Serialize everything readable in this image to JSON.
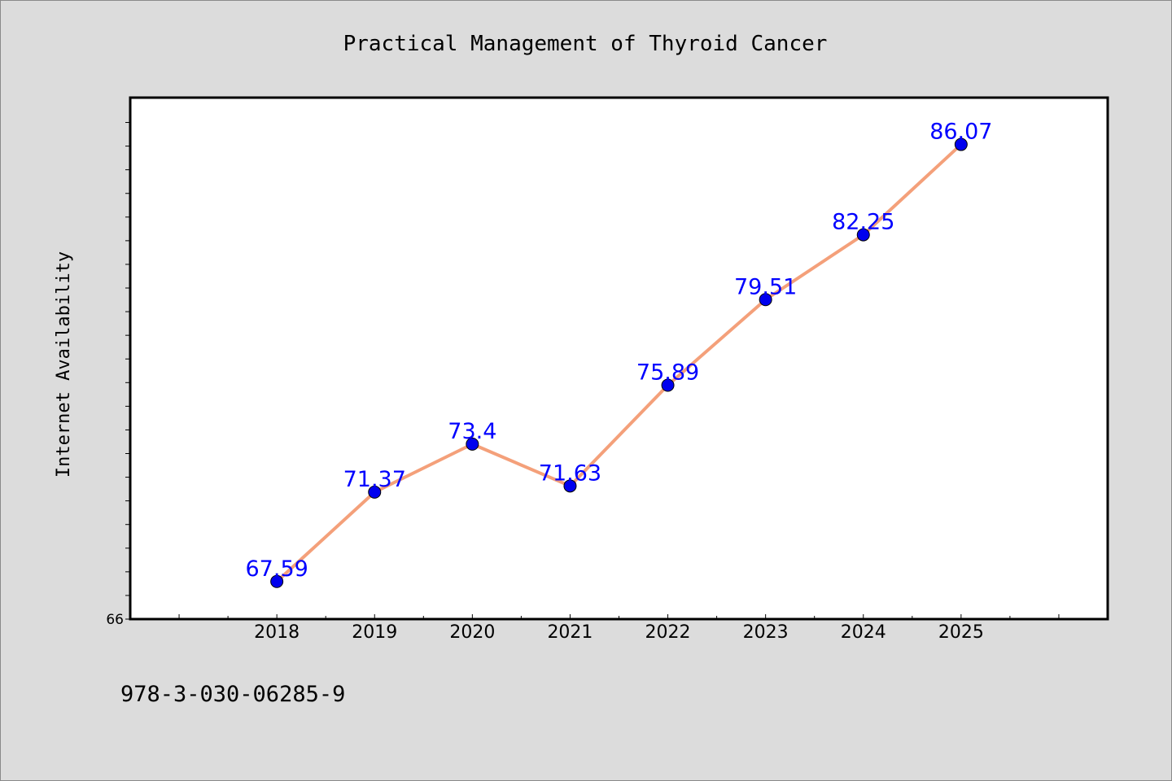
{
  "chart_data": {
    "type": "line",
    "title": "Practical Management of Thyroid Cancer",
    "xlabel": "",
    "ylabel": "Internet Availability",
    "categories": [
      "2018",
      "2019",
      "2020",
      "2021",
      "2022",
      "2023",
      "2024",
      "2025"
    ],
    "series": [
      {
        "values": [
          67.59,
          71.37,
          73.4,
          71.63,
          75.89,
          79.51,
          82.25,
          86.07
        ],
        "labels": [
          "67.59",
          "71.37",
          "73.4",
          "71.63",
          "75.89",
          "79.51",
          "82.25",
          "86.07"
        ],
        "line_color": "#f4a07a",
        "marker_color": "#0000ee"
      }
    ],
    "ylim": [
      66,
      88.05
    ],
    "xlim": [
      2016.5,
      2026.5
    ],
    "y_tick_labels": [
      "66"
    ],
    "minor_y_step": 1,
    "grid": false,
    "legend": "none"
  },
  "footer": {
    "isbn": "978-3-030-06285-9"
  }
}
